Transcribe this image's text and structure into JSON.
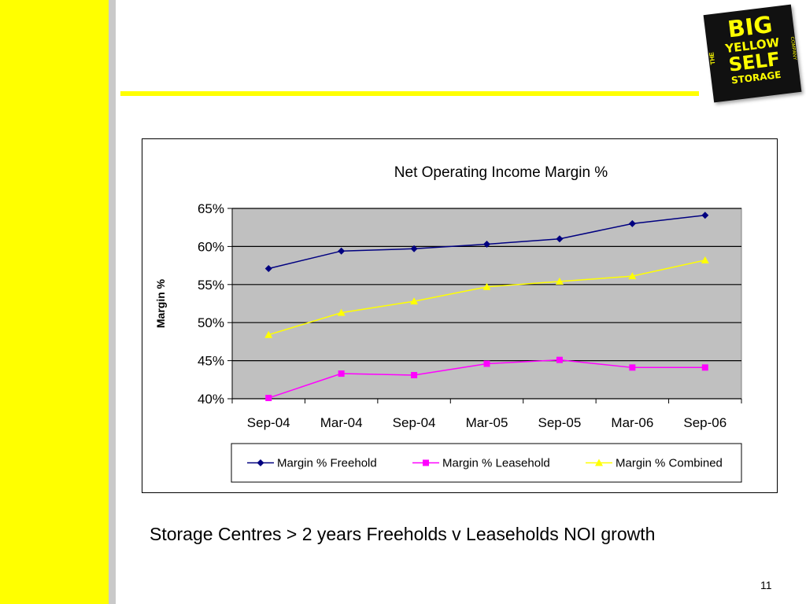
{
  "logo": {
    "side_left": "THE",
    "line1": "BIG",
    "line2": "YELLOW",
    "line3": "SELF",
    "line4": "STORAGE",
    "side_right": "COMPANY"
  },
  "caption": "Storage Centres > 2 years Freeholds v Leaseholds NOI growth",
  "page_number": "11",
  "colors": {
    "accent_yellow": "#ffff00",
    "plot_bg": "#c0c0c0",
    "freehold": "#000080",
    "leasehold": "#ff00ff",
    "combined": "#ffff00"
  },
  "chart_data": {
    "type": "line",
    "title": "Net Operating Income Margin %",
    "xlabel": "",
    "ylabel": "Margin %",
    "categories": [
      "Sep-04",
      "Mar-04",
      "Sep-04",
      "Mar-05",
      "Sep-05",
      "Mar-06",
      "Sep-06"
    ],
    "ylim": [
      40,
      65
    ],
    "yticks": [
      "40%",
      "45%",
      "50%",
      "55%",
      "60%",
      "65%"
    ],
    "grid": true,
    "legend": "bottom",
    "series": [
      {
        "name": "Margin % Freehold",
        "marker": "diamond",
        "color": "#000080",
        "values": [
          57.1,
          59.4,
          59.7,
          60.3,
          61.0,
          63.0,
          64.1
        ]
      },
      {
        "name": "Margin % Leasehold",
        "marker": "square",
        "color": "#ff00ff",
        "values": [
          40.1,
          43.3,
          43.1,
          44.6,
          45.1,
          44.1,
          44.1
        ]
      },
      {
        "name": "Margin % Combined",
        "marker": "triangle",
        "color": "#ffff00",
        "values": [
          48.4,
          51.3,
          52.8,
          54.7,
          55.4,
          56.1,
          58.2
        ]
      }
    ]
  }
}
